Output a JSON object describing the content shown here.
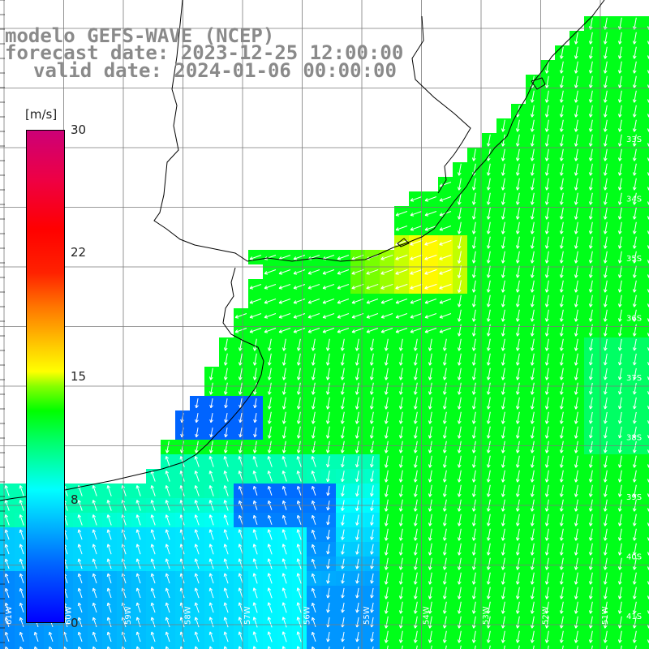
{
  "title": {
    "model": "modelo GEFS-WAVE (NCEP)",
    "forecast": "forecast date: 2023-12-25 12:00:00",
    "valid": "valid date: 2024-01-06 00:00:00"
  },
  "colorbar": {
    "unit": "[m/s]",
    "ticks": [
      "30",
      "22",
      "15",
      "8",
      "0"
    ],
    "range": [
      0,
      30
    ]
  },
  "grid_labels": {
    "lat": [
      "33S",
      "34S",
      "35S",
      "36S",
      "37S",
      "38S",
      "39S",
      "40S",
      "41S"
    ],
    "lon": [
      "61W",
      "60W",
      "59W",
      "58W",
      "57W",
      "56W",
      "55W",
      "54W",
      "53W",
      "52W",
      "51W"
    ]
  },
  "colors": {
    "land": "#ffffff",
    "coast": "#000000",
    "grid": "#7a7a7a",
    "arrows": "#ffffff",
    "title_text": "#8a8a8a"
  }
}
